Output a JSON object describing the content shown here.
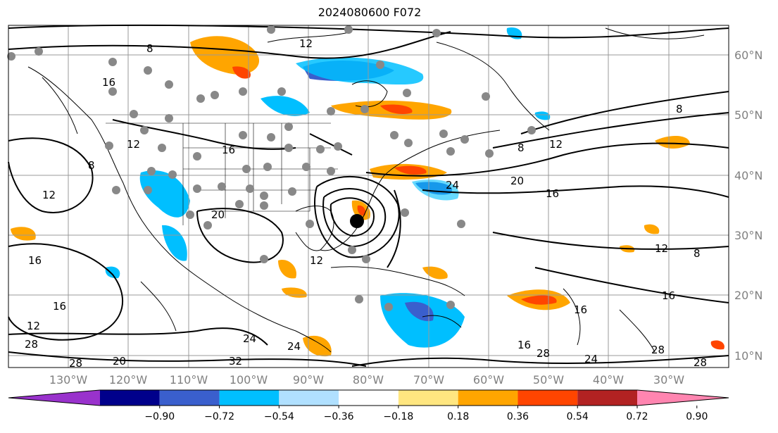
{
  "title": "2024080600 F072",
  "map": {
    "lon_labels": [
      "130°W",
      "120°W",
      "110°W",
      "100°W",
      "90°W",
      "80°W",
      "70°W",
      "60°W",
      "50°W",
      "40°W",
      "30°W"
    ],
    "lat_labels": [
      "60°N",
      "50°N",
      "40°N",
      "30°N",
      "20°N",
      "10°N"
    ],
    "contour_labels": [
      "8",
      "12",
      "16",
      "20",
      "24",
      "28",
      "32"
    ],
    "storm_marker_color": "#000000",
    "station_marker_color": "#888888"
  },
  "colorbar": {
    "ticks": [
      "−0.90",
      "−0.72",
      "−0.54",
      "−0.36",
      "−0.18",
      "0.18",
      "0.36",
      "0.54",
      "0.72",
      "0.90"
    ],
    "colors": [
      "#9932CC",
      "#00008B",
      "#3A5FCD",
      "#00BFFF",
      "#B0E0FF",
      "#FFFFFF",
      "#FFE680",
      "#FFA500",
      "#FF4500",
      "#B22222",
      "#FF85B0"
    ]
  }
}
